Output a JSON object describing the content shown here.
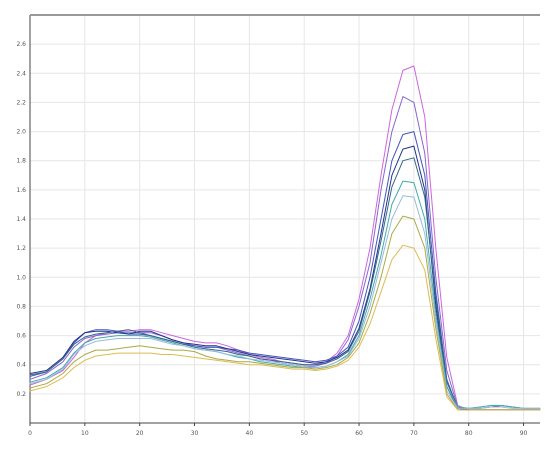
{
  "chart_data": {
    "type": "line",
    "title": "",
    "xlabel": "",
    "ylabel": "",
    "xlim": [
      0,
      93
    ],
    "ylim": [
      0,
      2.8
    ],
    "grid": true,
    "x_ticks": [
      0,
      10,
      20,
      30,
      40,
      50,
      60,
      70,
      80,
      90
    ],
    "x_tick_labels": [
      "0",
      "10",
      "20",
      "30",
      "40",
      "50",
      "60",
      "70",
      "80",
      "90"
    ],
    "y_ticks": [
      0.2,
      0.4,
      0.6,
      0.8,
      1.0,
      1.2,
      1.4,
      1.6,
      1.8,
      2.0,
      2.2,
      2.4,
      2.6
    ],
    "y_tick_labels": [
      "0.2",
      "0.4",
      "0.6",
      "0.8",
      "1.0",
      "1.2",
      "1.4",
      "1.6",
      "1.8",
      "2.0",
      "2.2",
      "2.4",
      "2.6"
    ],
    "x": [
      0,
      3,
      6,
      8,
      10,
      12,
      14,
      16,
      18,
      20,
      22,
      24,
      26,
      28,
      30,
      32,
      34,
      36,
      38,
      40,
      42,
      44,
      46,
      48,
      50,
      52,
      54,
      56,
      58,
      60,
      62,
      64,
      66,
      68,
      70,
      72,
      74,
      76,
      78,
      80,
      82,
      84,
      86,
      88,
      90,
      93
    ],
    "series": [
      {
        "color": "#cc66dd",
        "values": [
          0.26,
          0.3,
          0.36,
          0.45,
          0.55,
          0.6,
          0.62,
          0.63,
          0.63,
          0.64,
          0.64,
          0.62,
          0.6,
          0.58,
          0.56,
          0.55,
          0.55,
          0.53,
          0.5,
          0.47,
          0.45,
          0.44,
          0.42,
          0.41,
          0.4,
          0.4,
          0.42,
          0.48,
          0.6,
          0.85,
          1.2,
          1.7,
          2.15,
          2.42,
          2.45,
          2.1,
          1.2,
          0.45,
          0.12,
          0.09,
          0.09,
          0.09,
          0.09,
          0.09,
          0.09,
          0.09
        ]
      },
      {
        "color": "#8866cc",
        "values": [
          0.3,
          0.34,
          0.42,
          0.52,
          0.58,
          0.6,
          0.61,
          0.62,
          0.62,
          0.62,
          0.62,
          0.6,
          0.57,
          0.55,
          0.53,
          0.52,
          0.52,
          0.5,
          0.48,
          0.46,
          0.44,
          0.43,
          0.41,
          0.4,
          0.39,
          0.39,
          0.41,
          0.46,
          0.57,
          0.8,
          1.1,
          1.6,
          2.0,
          2.24,
          2.2,
          1.85,
          1.0,
          0.36,
          0.11,
          0.09,
          0.09,
          0.09,
          0.09,
          0.09,
          0.09,
          0.09
        ]
      },
      {
        "color": "#4455bb",
        "values": [
          0.32,
          0.35,
          0.44,
          0.55,
          0.62,
          0.64,
          0.64,
          0.63,
          0.61,
          0.61,
          0.6,
          0.58,
          0.56,
          0.54,
          0.53,
          0.52,
          0.52,
          0.51,
          0.5,
          0.48,
          0.47,
          0.46,
          0.45,
          0.44,
          0.43,
          0.42,
          0.43,
          0.46,
          0.52,
          0.7,
          1.0,
          1.4,
          1.8,
          1.98,
          2.0,
          1.7,
          0.9,
          0.3,
          0.1,
          0.09,
          0.09,
          0.09,
          0.09,
          0.09,
          0.09,
          0.09
        ]
      },
      {
        "color": "#223388",
        "values": [
          0.34,
          0.36,
          0.45,
          0.56,
          0.62,
          0.63,
          0.63,
          0.62,
          0.61,
          0.63,
          0.63,
          0.6,
          0.57,
          0.55,
          0.54,
          0.53,
          0.53,
          0.51,
          0.49,
          0.47,
          0.46,
          0.45,
          0.44,
          0.43,
          0.42,
          0.41,
          0.42,
          0.45,
          0.5,
          0.65,
          0.92,
          1.3,
          1.7,
          1.88,
          1.9,
          1.6,
          0.8,
          0.25,
          0.1,
          0.09,
          0.09,
          0.09,
          0.09,
          0.09,
          0.09,
          0.09
        ]
      },
      {
        "color": "#336688",
        "values": [
          0.33,
          0.35,
          0.44,
          0.54,
          0.59,
          0.61,
          0.62,
          0.63,
          0.64,
          0.62,
          0.6,
          0.58,
          0.56,
          0.54,
          0.52,
          0.51,
          0.5,
          0.49,
          0.47,
          0.46,
          0.44,
          0.43,
          0.42,
          0.41,
          0.4,
          0.4,
          0.41,
          0.44,
          0.49,
          0.63,
          0.9,
          1.25,
          1.62,
          1.8,
          1.82,
          1.55,
          0.85,
          0.28,
          0.11,
          0.1,
          0.1,
          0.11,
          0.12,
          0.11,
          0.1,
          0.1
        ]
      },
      {
        "color": "#44aaaa",
        "values": [
          0.28,
          0.31,
          0.38,
          0.48,
          0.55,
          0.58,
          0.59,
          0.6,
          0.6,
          0.6,
          0.59,
          0.57,
          0.55,
          0.53,
          0.51,
          0.5,
          0.49,
          0.47,
          0.45,
          0.44,
          0.42,
          0.41,
          0.4,
          0.39,
          0.38,
          0.38,
          0.39,
          0.42,
          0.47,
          0.6,
          0.85,
          1.15,
          1.5,
          1.66,
          1.65,
          1.4,
          0.75,
          0.25,
          0.11,
          0.1,
          0.11,
          0.12,
          0.12,
          0.11,
          0.1,
          0.1
        ]
      },
      {
        "color": "#99bbdd",
        "values": [
          0.27,
          0.3,
          0.37,
          0.47,
          0.53,
          0.56,
          0.57,
          0.58,
          0.58,
          0.58,
          0.58,
          0.56,
          0.54,
          0.53,
          0.51,
          0.5,
          0.49,
          0.47,
          0.46,
          0.44,
          0.43,
          0.42,
          0.41,
          0.4,
          0.39,
          0.38,
          0.39,
          0.42,
          0.46,
          0.58,
          0.8,
          1.1,
          1.4,
          1.56,
          1.55,
          1.3,
          0.7,
          0.22,
          0.1,
          0.1,
          0.1,
          0.11,
          0.11,
          0.1,
          0.1,
          0.1
        ]
      },
      {
        "color": "#aaaa44",
        "values": [
          0.24,
          0.27,
          0.34,
          0.42,
          0.47,
          0.5,
          0.5,
          0.51,
          0.52,
          0.53,
          0.52,
          0.51,
          0.5,
          0.5,
          0.49,
          0.46,
          0.44,
          0.43,
          0.42,
          0.42,
          0.41,
          0.4,
          0.39,
          0.38,
          0.38,
          0.37,
          0.38,
          0.4,
          0.45,
          0.55,
          0.75,
          1.0,
          1.3,
          1.42,
          1.4,
          1.2,
          0.65,
          0.2,
          0.09,
          0.09,
          0.09,
          0.09,
          0.09,
          0.09,
          0.09,
          0.09
        ]
      },
      {
        "color": "#ddbb55",
        "values": [
          0.22,
          0.25,
          0.31,
          0.38,
          0.43,
          0.46,
          0.47,
          0.48,
          0.48,
          0.48,
          0.48,
          0.47,
          0.47,
          0.46,
          0.45,
          0.44,
          0.43,
          0.42,
          0.41,
          0.4,
          0.4,
          0.39,
          0.38,
          0.37,
          0.37,
          0.36,
          0.37,
          0.39,
          0.43,
          0.52,
          0.68,
          0.9,
          1.12,
          1.22,
          1.2,
          1.05,
          0.58,
          0.18,
          0.09,
          0.09,
          0.09,
          0.09,
          0.09,
          0.09,
          0.09,
          0.09
        ]
      }
    ]
  }
}
